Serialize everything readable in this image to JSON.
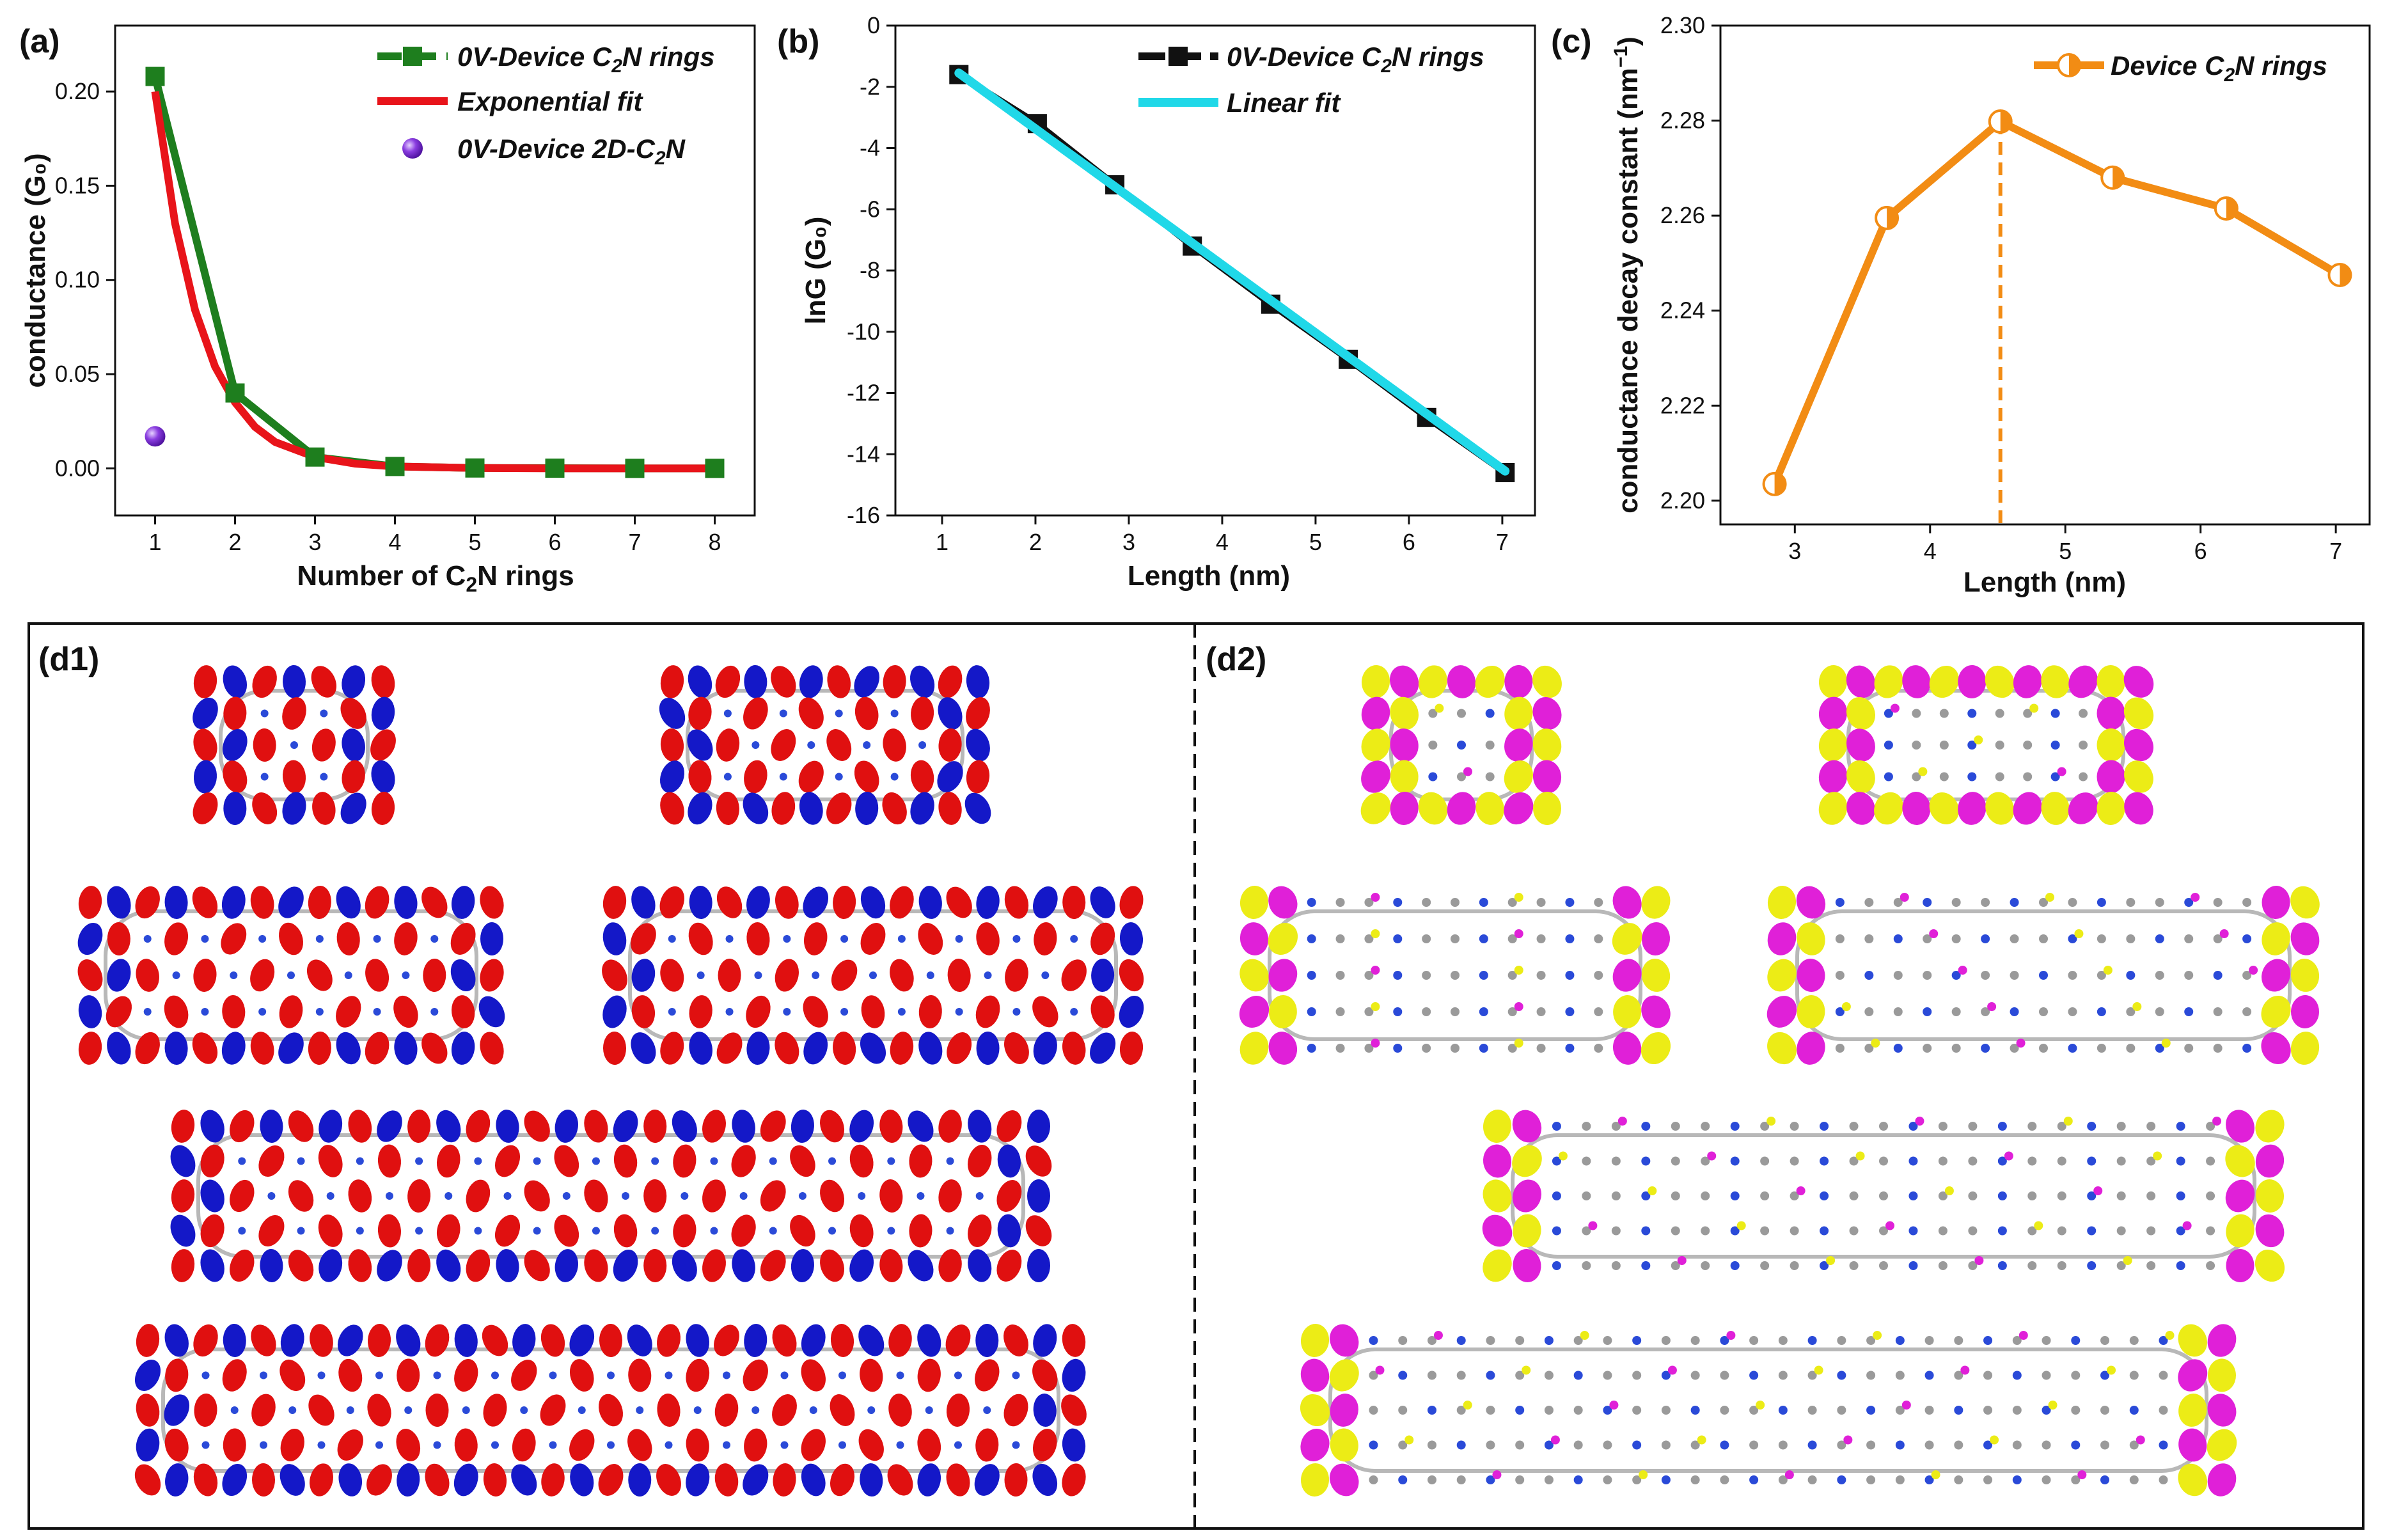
{
  "colors": {
    "green": "#1e7e1e",
    "red": "#e8141a",
    "purple": "#7b2fd6",
    "black": "#111111",
    "cyan": "#20d8e8",
    "orange": "#f28c14",
    "blue": "#1418c8",
    "orbital_red": "#e01010",
    "yellow": "#ecec16",
    "magenta": "#e020d8",
    "carbon": "#9a9a9a",
    "nitrogen": "#2a4ad8",
    "hydrogen": "#e8e8e8"
  },
  "chart_data": [
    {
      "id": "a",
      "panel_label": "(a)",
      "type": "line",
      "xlabel_main": "Number of C",
      "xlabel_sub": "2",
      "xlabel_tail": "N rings",
      "ylabel": "conductance (G₀)",
      "xlim": [
        0.5,
        8.5
      ],
      "ylim": [
        -0.025,
        0.235
      ],
      "xticks": [
        1,
        2,
        3,
        4,
        5,
        6,
        7,
        8
      ],
      "yticks": [
        0.0,
        0.05,
        0.1,
        0.15,
        0.2
      ],
      "ytick_labels": [
        "0.00",
        "0.05",
        "0.10",
        "0.15",
        "0.20"
      ],
      "series": [
        {
          "name": "0V-Device C₂N rings",
          "name_main": "0V-Device C",
          "name_sub": "2",
          "name_tail": "N rings",
          "style": "line-square",
          "x": [
            1,
            2,
            3,
            4,
            5,
            6,
            7,
            8
          ],
          "y": [
            0.208,
            0.04,
            0.006,
            0.001,
            0.0002,
            0.0001,
            0.0,
            0.0
          ]
        },
        {
          "name": "Exponential fit",
          "style": "line",
          "x": [
            1.0,
            1.25,
            1.5,
            1.75,
            2.0,
            2.25,
            2.5,
            3.0,
            3.5,
            4.0,
            5.0,
            6.0,
            7.0,
            8.0
          ],
          "y": [
            0.2,
            0.13,
            0.084,
            0.054,
            0.035,
            0.022,
            0.014,
            0.006,
            0.0025,
            0.001,
            0.0002,
            0.0,
            0.0,
            0.0
          ]
        },
        {
          "name": "0V-Device 2D-C₂N",
          "name_main": "0V-Device 2D-C",
          "name_sub": "2",
          "name_tail": "N",
          "style": "sphere",
          "x": [
            1
          ],
          "y": [
            0.017
          ]
        }
      ]
    },
    {
      "id": "b",
      "panel_label": "(b)",
      "type": "line",
      "xlabel": "Length (nm)",
      "ylabel": "lnG (G₀)",
      "xlim": [
        0.5,
        7.35
      ],
      "ylim": [
        -16,
        0
      ],
      "xticks": [
        1,
        2,
        3,
        4,
        5,
        6,
        7
      ],
      "yticks": [
        0,
        -2,
        -4,
        -6,
        -8,
        -10,
        -12,
        -14,
        -16
      ],
      "series": [
        {
          "name": "0V-Device C₂N rings",
          "name_main": "0V-Device C",
          "name_sub": "2",
          "name_tail": "N rings",
          "style": "line-square",
          "x": [
            1.18,
            2.02,
            2.85,
            3.68,
            4.52,
            5.35,
            6.19,
            7.03
          ],
          "y": [
            -1.6,
            -3.2,
            -5.2,
            -7.2,
            -9.1,
            -10.9,
            -12.8,
            -14.6
          ]
        },
        {
          "name": "Linear fit",
          "style": "line",
          "x": [
            1.18,
            7.03
          ],
          "y": [
            -1.55,
            -14.55
          ]
        }
      ]
    },
    {
      "id": "c",
      "panel_label": "(c)",
      "type": "line",
      "xlabel": "Length (nm)",
      "ylabel": "conductance decay constant (nm⁻¹)",
      "ylabel_main": "conductance decay constant (nm",
      "ylabel_sup": "−1",
      "ylabel_tail": ")",
      "xlim": [
        2.45,
        7.25
      ],
      "ylim": [
        2.195,
        2.3
      ],
      "xticks": [
        3,
        4,
        5,
        6,
        7
      ],
      "yticks": [
        2.2,
        2.22,
        2.24,
        2.26,
        2.28,
        2.3
      ],
      "ytick_labels": [
        "2.20",
        "2.22",
        "2.24",
        "2.26",
        "2.28",
        "2.30"
      ],
      "peak_x": 4.52,
      "series": [
        {
          "name": "Device C₂N rings",
          "name_main": "Device C",
          "name_sub": "2",
          "name_tail": "N rings",
          "style": "line-halfcircle",
          "x": [
            2.85,
            3.68,
            4.52,
            5.35,
            6.19,
            7.03
          ],
          "y": [
            2.2035,
            2.2595,
            2.2798,
            2.268,
            2.2615,
            2.2475
          ]
        }
      ]
    }
  ],
  "orbitals": {
    "d1_label": "(d1)",
    "d2_label": "(d2)",
    "d1_rows": [
      [
        1,
        2
      ],
      [
        3,
        4
      ],
      [
        5
      ],
      [
        6
      ]
    ],
    "d2_rows": [
      [
        1,
        2
      ],
      [
        3,
        4
      ],
      [
        5
      ],
      [
        6
      ]
    ]
  }
}
